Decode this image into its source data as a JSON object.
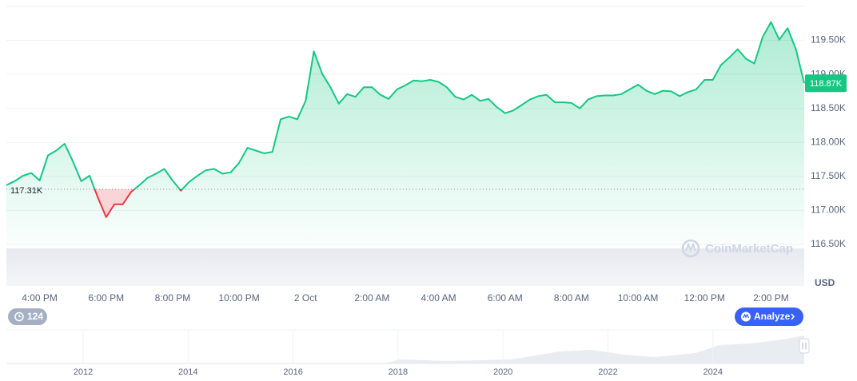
{
  "chart_data": {
    "type": "line",
    "color": "#16c784",
    "down_color": "#ea3943",
    "x": [
      15,
      15.25,
      15.5,
      15.75,
      16,
      16.25,
      16.5,
      16.75,
      17,
      17.25,
      17.5,
      17.75,
      18,
      18.25,
      18.5,
      18.75,
      19,
      19.25,
      19.5,
      19.75,
      20,
      20.25,
      20.5,
      20.75,
      21,
      21.25,
      21.5,
      21.75,
      22,
      22.25,
      22.5,
      22.75,
      23,
      23.25,
      23.5,
      23.75,
      24,
      24.25,
      24.5,
      24.75,
      25,
      25.25,
      25.5,
      25.75,
      26,
      26.25,
      26.5,
      26.75,
      27,
      27.25,
      27.5,
      27.75,
      28,
      28.25,
      28.5,
      28.75,
      29,
      29.25,
      29.5,
      29.75,
      30,
      30.25,
      30.5,
      30.75,
      31,
      31.25,
      31.5,
      31.75,
      32,
      32.25,
      32.5,
      32.75,
      33,
      33.25,
      33.5,
      33.75,
      34,
      34.25,
      34.5,
      34.75,
      35,
      35.25,
      35.5,
      35.75,
      36,
      36.25,
      36.5,
      36.75,
      37,
      37.25,
      37.5,
      37.75,
      38,
      38.25,
      38.5,
      38.75,
      39
    ],
    "values": [
      117370,
      117430,
      117510,
      117550,
      117440,
      117810,
      117880,
      117980,
      117720,
      117430,
      117510,
      117190,
      116900,
      117090,
      117090,
      117270,
      117370,
      117480,
      117540,
      117610,
      117440,
      117290,
      117420,
      117510,
      117590,
      117610,
      117540,
      117560,
      117700,
      117920,
      117880,
      117840,
      117860,
      118340,
      118380,
      118340,
      118610,
      119340,
      119010,
      118810,
      118570,
      118710,
      118670,
      118810,
      118810,
      118700,
      118640,
      118780,
      118840,
      118910,
      118900,
      118920,
      118890,
      118810,
      118670,
      118630,
      118700,
      118610,
      118640,
      118520,
      118430,
      118470,
      118550,
      118630,
      118680,
      118700,
      118590,
      118590,
      118580,
      118500,
      118630,
      118680,
      118690,
      118690,
      118710,
      118780,
      118850,
      118760,
      118710,
      118760,
      118750,
      118680,
      118740,
      118780,
      118920,
      118920,
      119140,
      119250,
      119370,
      119230,
      119160,
      119550,
      119770,
      119510,
      119680,
      119370,
      118870
    ],
    "xlim": [
      15,
      39
    ],
    "xticks": [
      {
        "value": 16,
        "label": "4:00 PM"
      },
      {
        "value": 18,
        "label": "6:00 PM"
      },
      {
        "value": 20,
        "label": "8:00 PM"
      },
      {
        "value": 22,
        "label": "10:00 PM"
      },
      {
        "value": 24,
        "label": "2 Oct"
      },
      {
        "value": 26,
        "label": "2:00 AM"
      },
      {
        "value": 28,
        "label": "4:00 AM"
      },
      {
        "value": 30,
        "label": "6:00 AM"
      },
      {
        "value": 32,
        "label": "8:00 AM"
      },
      {
        "value": 34,
        "label": "10:00 AM"
      },
      {
        "value": 36,
        "label": "12:00 PM"
      },
      {
        "value": 38,
        "label": "2:00 PM"
      }
    ],
    "ylim": [
      116500,
      120000
    ],
    "yticks": [
      {
        "value": 116500,
        "label": "116.50K"
      },
      {
        "value": 117000,
        "label": "117.00K"
      },
      {
        "value": 117500,
        "label": "117.50K"
      },
      {
        "value": 118000,
        "label": "118.00K"
      },
      {
        "value": 118500,
        "label": "118.50K"
      },
      {
        "value": 119000,
        "label": "119.00K"
      },
      {
        "value": 119500,
        "label": "119.50K"
      }
    ],
    "grid": true,
    "reference": {
      "value": 117310,
      "label": "117.31K"
    },
    "last_price": {
      "value": 118870,
      "label": "118.87K"
    },
    "unit": "USD",
    "watermark": "CoinMarketCap",
    "badge": 124,
    "button": "Analyze",
    "navigator_labels": [
      "2012",
      "2014",
      "2016",
      "2018",
      "2020",
      "2022",
      "2024"
    ]
  }
}
